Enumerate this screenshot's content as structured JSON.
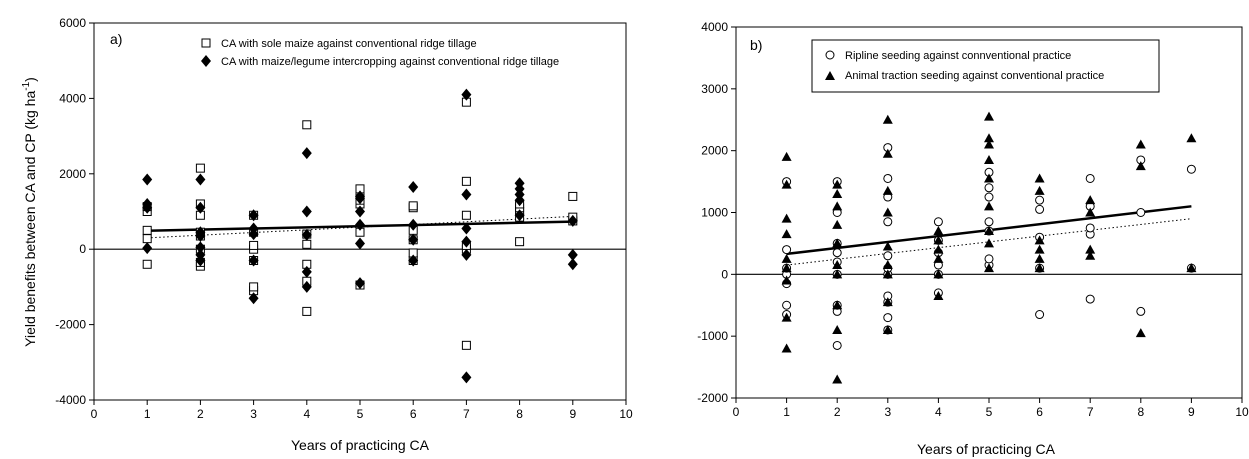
{
  "chart_data": [
    {
      "type": "scatter",
      "panel_label": "a)",
      "xlabel": "Years of practicing CA",
      "ylabel": "Yield benefits between CA and CP (kg ha",
      "ylabel_sup": "-1",
      "ylabel_end": ")",
      "xlim": [
        0,
        10
      ],
      "ylim": [
        -4000,
        6000
      ],
      "xticks": [
        0,
        1,
        2,
        3,
        4,
        5,
        6,
        7,
        8,
        9,
        10
      ],
      "yticks": [
        -4000,
        -2000,
        0,
        2000,
        4000,
        6000
      ],
      "legend_position": "top-center",
      "series": [
        {
          "name": "CA with sole maize against conventional ridge tillage",
          "marker": "open-square",
          "points": [
            [
              1,
              -400
            ],
            [
              1,
              280
            ],
            [
              1,
              500
            ],
            [
              1,
              1000
            ],
            [
              1,
              1130
            ],
            [
              2,
              -450
            ],
            [
              2,
              -350
            ],
            [
              2,
              0
            ],
            [
              2,
              350
            ],
            [
              2,
              450
            ],
            [
              2,
              900
            ],
            [
              2,
              1200
            ],
            [
              2,
              2150
            ],
            [
              3,
              -1100
            ],
            [
              3,
              -1000
            ],
            [
              3,
              -300
            ],
            [
              3,
              0
            ],
            [
              3,
              100
            ],
            [
              3,
              450
            ],
            [
              3,
              900
            ],
            [
              4,
              -1650
            ],
            [
              4,
              -850
            ],
            [
              4,
              -400
            ],
            [
              4,
              130
            ],
            [
              4,
              400
            ],
            [
              4,
              3300
            ],
            [
              5,
              -950
            ],
            [
              5,
              450
            ],
            [
              5,
              1200
            ],
            [
              5,
              1300
            ],
            [
              5,
              1450
            ],
            [
              5,
              1600
            ],
            [
              6,
              -300
            ],
            [
              6,
              -100
            ],
            [
              6,
              250
            ],
            [
              6,
              500
            ],
            [
              6,
              1100
            ],
            [
              6,
              1150
            ],
            [
              7,
              -2550
            ],
            [
              7,
              0
            ],
            [
              7,
              100
            ],
            [
              7,
              900
            ],
            [
              7,
              1800
            ],
            [
              7,
              3900
            ],
            [
              8,
              200
            ],
            [
              8,
              850
            ],
            [
              8,
              1000
            ],
            [
              8,
              1100
            ],
            [
              8,
              1200
            ],
            [
              9,
              750
            ],
            [
              9,
              850
            ],
            [
              9,
              1400
            ]
          ]
        },
        {
          "name": "CA with maize/legume intercropping against conventional ridge tillage",
          "marker": "filled-diamond",
          "points": [
            [
              1,
              30
            ],
            [
              1,
              1100
            ],
            [
              1,
              1200
            ],
            [
              1,
              1850
            ],
            [
              2,
              -300
            ],
            [
              2,
              -150
            ],
            [
              2,
              50
            ],
            [
              2,
              350
            ],
            [
              2,
              450
            ],
            [
              2,
              1100
            ],
            [
              2,
              1850
            ],
            [
              3,
              -1300
            ],
            [
              3,
              -300
            ],
            [
              3,
              400
            ],
            [
              3,
              550
            ],
            [
              3,
              900
            ],
            [
              4,
              -1000
            ],
            [
              4,
              -600
            ],
            [
              4,
              380
            ],
            [
              4,
              1000
            ],
            [
              4,
              2550
            ],
            [
              5,
              -900
            ],
            [
              5,
              150
            ],
            [
              5,
              650
            ],
            [
              5,
              1000
            ],
            [
              5,
              1350
            ],
            [
              5,
              1400
            ],
            [
              6,
              -300
            ],
            [
              6,
              250
            ],
            [
              6,
              650
            ],
            [
              6,
              1650
            ],
            [
              7,
              -3400
            ],
            [
              7,
              -150
            ],
            [
              7,
              200
            ],
            [
              7,
              550
            ],
            [
              7,
              1450
            ],
            [
              7,
              4100
            ],
            [
              8,
              900
            ],
            [
              8,
              1300
            ],
            [
              8,
              1450
            ],
            [
              8,
              1600
            ],
            [
              8,
              1750
            ],
            [
              9,
              -400
            ],
            [
              9,
              -150
            ],
            [
              9,
              750
            ]
          ]
        }
      ],
      "fits": [
        {
          "style": "solid-thick",
          "x": [
            1,
            9
          ],
          "y": [
            490,
            730
          ]
        },
        {
          "style": "dotted",
          "x": [
            1,
            9
          ],
          "y": [
            300,
            870
          ]
        }
      ]
    },
    {
      "type": "scatter",
      "panel_label": "b)",
      "xlabel": "Years of practicing CA",
      "xlim": [
        0,
        10
      ],
      "ylim": [
        -2000,
        4000
      ],
      "xticks": [
        0,
        1,
        2,
        3,
        4,
        5,
        6,
        7,
        8,
        9,
        10
      ],
      "yticks": [
        -2000,
        -1000,
        0,
        1000,
        2000,
        3000,
        4000
      ],
      "legend_position": "top-center",
      "series": [
        {
          "name": "Ripline seeding against connventional practice",
          "marker": "open-circle",
          "points": [
            [
              1,
              -650
            ],
            [
              1,
              -500
            ],
            [
              1,
              -150
            ],
            [
              1,
              0
            ],
            [
              1,
              100
            ],
            [
              1,
              400
            ],
            [
              1,
              1500
            ],
            [
              2,
              -1150
            ],
            [
              2,
              -600
            ],
            [
              2,
              -500
            ],
            [
              2,
              0
            ],
            [
              2,
              200
            ],
            [
              2,
              350
            ],
            [
              2,
              500
            ],
            [
              2,
              1000
            ],
            [
              2,
              1500
            ],
            [
              3,
              -900
            ],
            [
              3,
              -700
            ],
            [
              3,
              -450
            ],
            [
              3,
              -350
            ],
            [
              3,
              0
            ],
            [
              3,
              100
            ],
            [
              3,
              300
            ],
            [
              3,
              850
            ],
            [
              3,
              1250
            ],
            [
              3,
              1550
            ],
            [
              3,
              2050
            ],
            [
              4,
              -300
            ],
            [
              4,
              0
            ],
            [
              4,
              150
            ],
            [
              4,
              350
            ],
            [
              4,
              550
            ],
            [
              4,
              850
            ],
            [
              5,
              150
            ],
            [
              5,
              250
            ],
            [
              5,
              700
            ],
            [
              5,
              850
            ],
            [
              5,
              1250
            ],
            [
              5,
              1400
            ],
            [
              5,
              1650
            ],
            [
              6,
              -650
            ],
            [
              6,
              100
            ],
            [
              6,
              600
            ],
            [
              6,
              1050
            ],
            [
              6,
              1200
            ],
            [
              7,
              -400
            ],
            [
              7,
              650
            ],
            [
              7,
              750
            ],
            [
              7,
              1100
            ],
            [
              7,
              1550
            ],
            [
              8,
              -600
            ],
            [
              8,
              1000
            ],
            [
              8,
              1850
            ],
            [
              9,
              100
            ],
            [
              9,
              1700
            ]
          ]
        },
        {
          "name": "Animal traction seeding against conventional practice",
          "marker": "filled-triangle",
          "points": [
            [
              1,
              -1200
            ],
            [
              1,
              -700
            ],
            [
              1,
              -100
            ],
            [
              1,
              100
            ],
            [
              1,
              250
            ],
            [
              1,
              650
            ],
            [
              1,
              900
            ],
            [
              1,
              1450
            ],
            [
              1,
              1900
            ],
            [
              2,
              -1700
            ],
            [
              2,
              -900
            ],
            [
              2,
              -500
            ],
            [
              2,
              0
            ],
            [
              2,
              150
            ],
            [
              2,
              500
            ],
            [
              2,
              800
            ],
            [
              2,
              1100
            ],
            [
              2,
              1300
            ],
            [
              2,
              1450
            ],
            [
              3,
              -900
            ],
            [
              3,
              -450
            ],
            [
              3,
              0
            ],
            [
              3,
              150
            ],
            [
              3,
              450
            ],
            [
              3,
              1000
            ],
            [
              3,
              1350
            ],
            [
              3,
              1950
            ],
            [
              3,
              2500
            ],
            [
              4,
              -350
            ],
            [
              4,
              0
            ],
            [
              4,
              250
            ],
            [
              4,
              400
            ],
            [
              4,
              550
            ],
            [
              4,
              700
            ],
            [
              5,
              100
            ],
            [
              5,
              500
            ],
            [
              5,
              700
            ],
            [
              5,
              1100
            ],
            [
              5,
              1550
            ],
            [
              5,
              1850
            ],
            [
              5,
              2100
            ],
            [
              5,
              2200
            ],
            [
              5,
              2550
            ],
            [
              6,
              100
            ],
            [
              6,
              250
            ],
            [
              6,
              400
            ],
            [
              6,
              550
            ],
            [
              6,
              1350
            ],
            [
              6,
              1550
            ],
            [
              7,
              300
            ],
            [
              7,
              400
            ],
            [
              7,
              1000
            ],
            [
              7,
              1200
            ],
            [
              8,
              -950
            ],
            [
              8,
              1750
            ],
            [
              8,
              2100
            ],
            [
              9,
              100
            ],
            [
              9,
              2200
            ]
          ]
        }
      ],
      "fits": [
        {
          "style": "solid-thick",
          "x": [
            1,
            9
          ],
          "y": [
            330,
            1100
          ]
        },
        {
          "style": "dotted",
          "x": [
            1,
            9
          ],
          "y": [
            150,
            900
          ]
        }
      ]
    }
  ]
}
